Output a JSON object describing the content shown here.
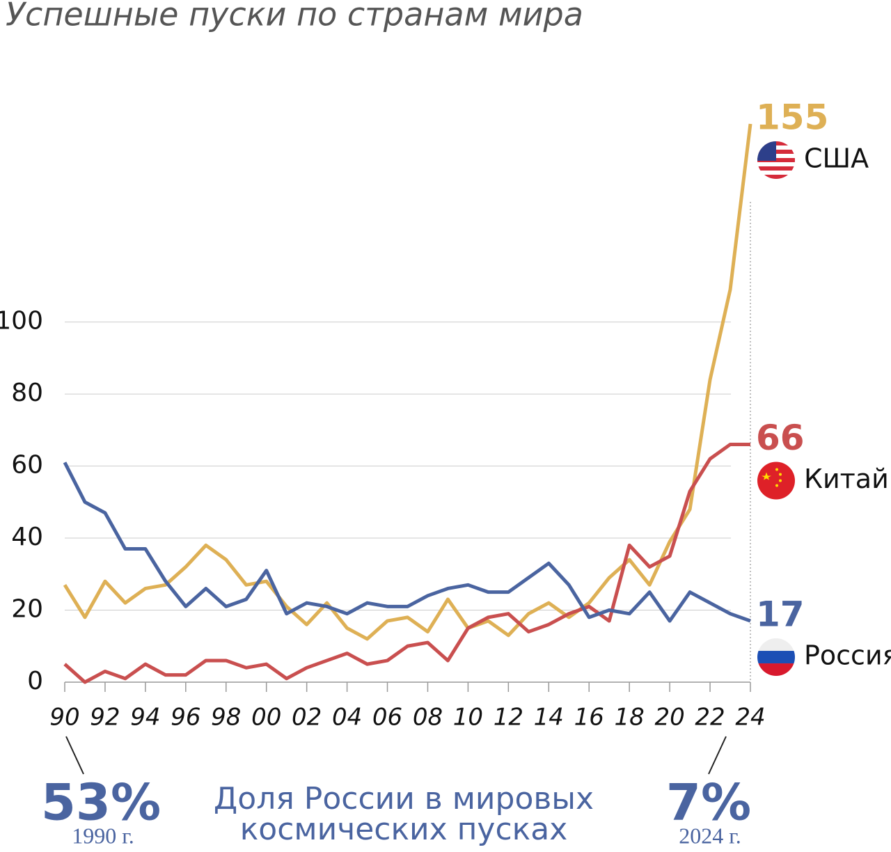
{
  "chart_data": {
    "type": "line",
    "title": "Успешные пуски по странам мира",
    "x": [
      1990,
      1991,
      1992,
      1993,
      1994,
      1995,
      1996,
      1997,
      1998,
      1999,
      2000,
      2001,
      2002,
      2003,
      2004,
      2005,
      2006,
      2007,
      2008,
      2009,
      2010,
      2011,
      2012,
      2013,
      2014,
      2015,
      2016,
      2017,
      2018,
      2019,
      2020,
      2021,
      2022,
      2023,
      2024
    ],
    "series": [
      {
        "name": "США",
        "color": "#deb055",
        "values": [
          27,
          18,
          28,
          22,
          26,
          27,
          32,
          38,
          34,
          27,
          28,
          21,
          16,
          22,
          15,
          12,
          17,
          18,
          14,
          23,
          15,
          17,
          13,
          19,
          22,
          18,
          22,
          29,
          34,
          27,
          39,
          48,
          84,
          109,
          155
        ]
      },
      {
        "name": "Китай",
        "color": "#c94f4f",
        "values": [
          5,
          0,
          3,
          1,
          5,
          2,
          2,
          6,
          6,
          4,
          5,
          1,
          4,
          6,
          8,
          5,
          6,
          10,
          11,
          6,
          15,
          18,
          19,
          14,
          16,
          19,
          21,
          17,
          38,
          32,
          35,
          53,
          62,
          66,
          66
        ]
      },
      {
        "name": "Россия",
        "color": "#4a64a0",
        "values": [
          61,
          50,
          47,
          37,
          37,
          28,
          21,
          26,
          21,
          23,
          31,
          19,
          22,
          21,
          19,
          22,
          21,
          21,
          24,
          26,
          27,
          25,
          25,
          29,
          33,
          27,
          18,
          20,
          19,
          25,
          17,
          25,
          22,
          19,
          17
        ]
      }
    ],
    "xlim": [
      1990,
      2024
    ],
    "xticks": [
      {
        "value": 1990,
        "label": "90"
      },
      {
        "value": 1992,
        "label": "92"
      },
      {
        "value": 1994,
        "label": "94"
      },
      {
        "value": 1996,
        "label": "96"
      },
      {
        "value": 1998,
        "label": "98"
      },
      {
        "value": 2000,
        "label": "00"
      },
      {
        "value": 2002,
        "label": "02"
      },
      {
        "value": 2004,
        "label": "04"
      },
      {
        "value": 2006,
        "label": "06"
      },
      {
        "value": 2008,
        "label": "08"
      },
      {
        "value": 2010,
        "label": "10"
      },
      {
        "value": 2012,
        "label": "12"
      },
      {
        "value": 2014,
        "label": "14"
      },
      {
        "value": 2016,
        "label": "16"
      },
      {
        "value": 2018,
        "label": "18"
      },
      {
        "value": 2020,
        "label": "20"
      },
      {
        "value": 2022,
        "label": "22"
      },
      {
        "value": 2024,
        "label": "24"
      }
    ],
    "ylim": [
      0,
      155
    ],
    "yticks": [
      0,
      20,
      40,
      60,
      80,
      100
    ],
    "grid": true,
    "annotations": {
      "share_title": [
        "Доля России в мировых",
        "космических пусках"
      ],
      "start_share": "53%",
      "start_year": "1990 г.",
      "end_share": "7%",
      "end_year": "2024 г."
    }
  }
}
